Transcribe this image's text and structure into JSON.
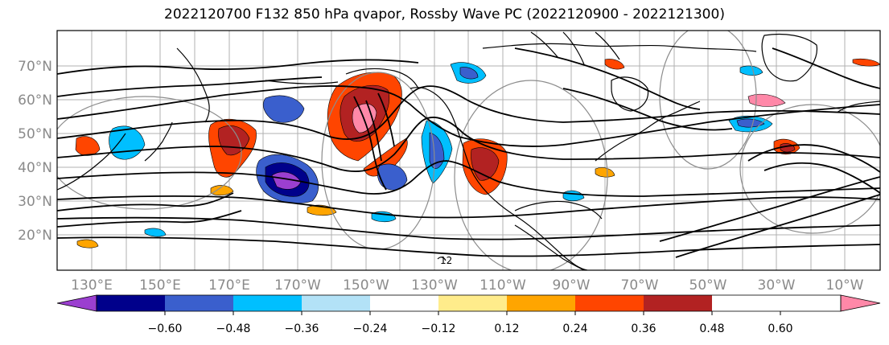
{
  "title": "2022120700 F132 850 hPa qvapor, Rossby Wave PC (2022120900 - 2022121300)",
  "map": {
    "lat_labels": [
      "70°N",
      "60°N",
      "50°N",
      "40°N",
      "30°N",
      "20°N"
    ],
    "lon_labels": [
      "130°E",
      "150°E",
      "170°E",
      "170°W",
      "150°W",
      "130°W",
      "110°W",
      "90°W",
      "70°W",
      "50°W",
      "30°W",
      "10°W"
    ],
    "contour_label": "12"
  },
  "colorbar": {
    "tick_labels": [
      "−0.60",
      "−0.48",
      "−0.36",
      "−0.24",
      "−0.12",
      "0.12",
      "0.24",
      "0.36",
      "0.48",
      "0.60"
    ],
    "colors": [
      "#9b3fd0",
      "#00008b",
      "#3a5fcd",
      "#00bfff",
      "#b3e2f7",
      "#ffffff",
      "#ffec8b",
      "#ffa500",
      "#ff4500",
      "#b22222",
      "#ff88a8"
    ]
  },
  "palette": {
    "land": "#000000",
    "contour": "#000000",
    "grid": "#a0a0a0",
    "circles": "#888888"
  }
}
